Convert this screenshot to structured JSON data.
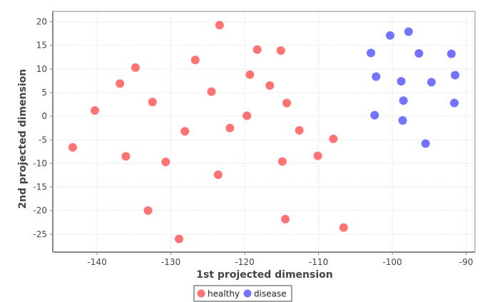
{
  "chart_data": {
    "type": "scatter",
    "xlabel": "1st projected dimension",
    "ylabel": "2nd projected dimension",
    "xlim": [
      -146,
      -88.8
    ],
    "ylim": [
      -28.8,
      22.2
    ],
    "x_ticks": [
      -140,
      -130,
      -120,
      -110,
      -100,
      -90
    ],
    "y_ticks": [
      -25,
      -20,
      -15,
      -10,
      -5,
      0,
      5,
      10,
      15,
      20
    ],
    "grid": true,
    "legend": "bottom-center",
    "series": [
      {
        "name": "healthy",
        "color": "#ff7373",
        "points": [
          [
            -143.3,
            -6.6
          ],
          [
            -140.3,
            1.2
          ],
          [
            -136.9,
            6.9
          ],
          [
            -136.1,
            -8.5
          ],
          [
            -134.8,
            10.3
          ],
          [
            -133.1,
            -20.0
          ],
          [
            -132.5,
            3.0
          ],
          [
            -130.7,
            -9.7
          ],
          [
            -128.9,
            -26.0
          ],
          [
            -128.1,
            -3.2
          ],
          [
            -126.7,
            11.9
          ],
          [
            -124.5,
            5.2
          ],
          [
            -123.6,
            -12.4
          ],
          [
            -123.4,
            19.3
          ],
          [
            -122.0,
            -2.5
          ],
          [
            -119.7,
            0.1
          ],
          [
            -119.3,
            8.8
          ],
          [
            -118.3,
            14.1
          ],
          [
            -116.6,
            6.5
          ],
          [
            -115.1,
            13.9
          ],
          [
            -114.9,
            -9.6
          ],
          [
            -114.5,
            -21.8
          ],
          [
            -114.3,
            2.8
          ],
          [
            -112.6,
            -3.0
          ],
          [
            -110.1,
            -8.4
          ],
          [
            -108.0,
            -4.8
          ],
          [
            -106.6,
            -23.6
          ]
        ]
      },
      {
        "name": "disease",
        "color": "#7373ff",
        "points": [
          [
            -102.9,
            13.4
          ],
          [
            -102.4,
            0.2
          ],
          [
            -102.2,
            8.4
          ],
          [
            -100.3,
            17.1
          ],
          [
            -98.8,
            7.4
          ],
          [
            -98.6,
            -0.9
          ],
          [
            -98.5,
            3.3
          ],
          [
            -97.8,
            17.9
          ],
          [
            -96.4,
            13.3
          ],
          [
            -95.5,
            -5.8
          ],
          [
            -94.7,
            7.2
          ],
          [
            -92.0,
            13.2
          ],
          [
            -91.6,
            2.8
          ],
          [
            -91.5,
            8.7
          ]
        ]
      }
    ]
  }
}
